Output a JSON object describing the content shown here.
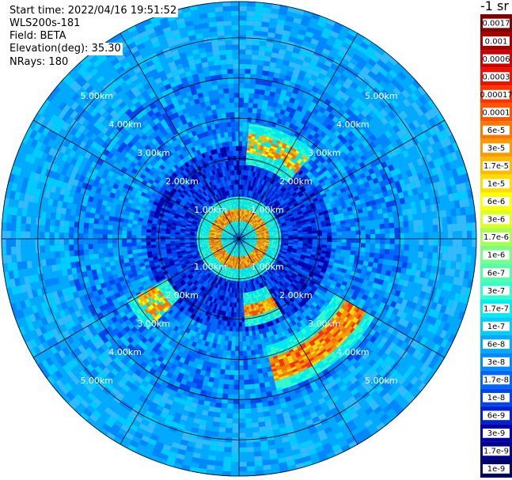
{
  "info": {
    "start_time": "Start time: 2022/04/16 19:51:52",
    "instrument": "WLS200s-181",
    "field": "Field: BETA",
    "elevation": "Elevation(deg): 35.30",
    "nrays": "NRays: 180"
  },
  "chart_data": {
    "type": "heatmap",
    "title": "",
    "projection": "polar (PPI scan)",
    "range_rings_km": [
      1,
      2,
      3,
      4,
      5
    ],
    "ring_labels": [
      "1.00km",
      "2.00km",
      "3.00km",
      "4.00km",
      "5.00km"
    ],
    "max_range_km": 5.9,
    "azimuth_spokes_deg": [
      0,
      30,
      60,
      90,
      120,
      150,
      180,
      210,
      240,
      270,
      300,
      330
    ],
    "n_rays": 180,
    "colorbar": {
      "unit": "-1 sr",
      "tick_labels": [
        "0.0017",
        "0.001",
        "0.0006",
        "0.0003",
        "0.00017",
        "0.0001",
        "6e-5",
        "3e-5",
        "1.7e-5",
        "1e-5",
        "6e-6",
        "3e-6",
        "1.7e-6",
        "1e-6",
        "6e-7",
        "3e-7",
        "1.7e-7",
        "1e-7",
        "6e-8",
        "3e-8",
        "1.7e-8",
        "1e-8",
        "6e-9",
        "3e-9",
        "1.7e-9",
        "1e-9"
      ],
      "colors": [
        "#7f0000",
        "#a50000",
        "#cc0000",
        "#ee1100",
        "#ff3300",
        "#ff5500",
        "#ff7700",
        "#ff9900",
        "#ffbb00",
        "#ffdd00",
        "#ffff00",
        "#ddff22",
        "#aaff55",
        "#77ff88",
        "#55ffaa",
        "#33ffcc",
        "#00eeee",
        "#00ccff",
        "#00aaff",
        "#0088ff",
        "#0066ff",
        "#0044ee",
        "#0022cc",
        "#0000aa",
        "#000088",
        "#000066"
      ]
    },
    "features": [
      {
        "name": "near-range ring",
        "range_km": [
          0.4,
          0.75
        ],
        "azimuth_deg": [
          0,
          360
        ],
        "value": "3e-5"
      },
      {
        "name": "SE arc",
        "range_km": [
          3.0,
          3.6
        ],
        "azimuth_deg": [
          120,
          165
        ],
        "value": "6e-5"
      },
      {
        "name": "S arc",
        "range_km": [
          1.6,
          1.9
        ],
        "azimuth_deg": [
          150,
          175
        ],
        "value": "3e-5"
      },
      {
        "name": "N arc",
        "range_km": [
          2.1,
          2.6
        ],
        "azimuth_deg": [
          5,
          40
        ],
        "value": "1.7e-5"
      },
      {
        "name": "SW patch",
        "range_km": [
          2.3,
          2.9
        ],
        "azimuth_deg": [
          225,
          240
        ],
        "value": "1.7e-5"
      }
    ]
  }
}
